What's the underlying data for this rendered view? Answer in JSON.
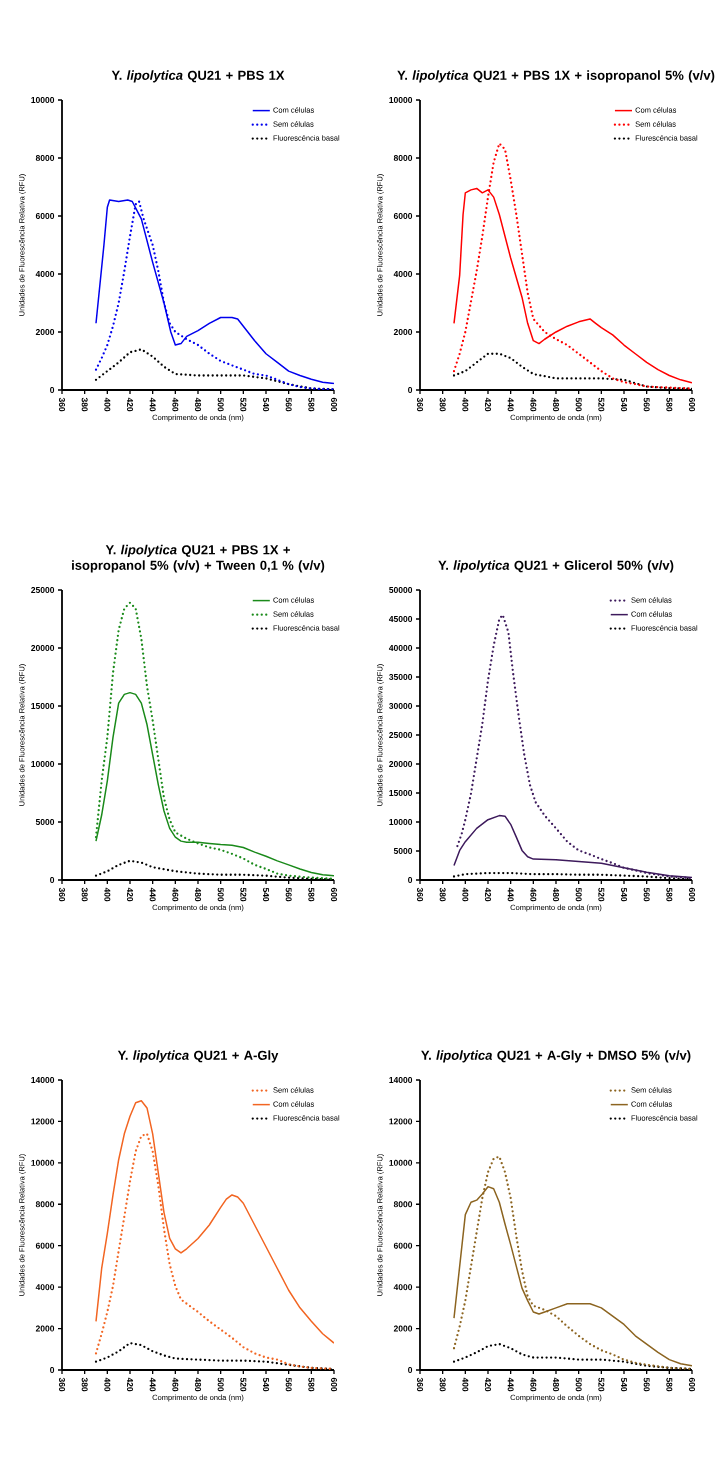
{
  "chart_data": [
    {
      "type": "line",
      "title": "Y. *lipolytica* QU21 + PBS 1X",
      "xlabel": "Comprimento de onda (nm)",
      "ylabel": "Unidades de Fluorescência Relativa (RFU)",
      "xlim": [
        360,
        600
      ],
      "xticks": [
        360,
        380,
        400,
        420,
        440,
        460,
        480,
        500,
        520,
        540,
        560,
        580,
        600
      ],
      "ylim": [
        0,
        10000
      ],
      "yticks": [
        0,
        2000,
        4000,
        6000,
        8000,
        10000
      ],
      "legend": "top right",
      "series": [
        {
          "name": "Com células",
          "color": "#0000ee",
          "line_style": "solid",
          "x": [
            390,
            397,
            400,
            402,
            410,
            418,
            422,
            430,
            440,
            450,
            456,
            460,
            465,
            470,
            480,
            490,
            500,
            510,
            515,
            520,
            530,
            540,
            550,
            560,
            570,
            580,
            590,
            600
          ],
          "values": [
            2300,
            5000,
            6300,
            6550,
            6500,
            6550,
            6500,
            5900,
            4400,
            3000,
            2000,
            1550,
            1600,
            1850,
            2050,
            2300,
            2500,
            2500,
            2450,
            2200,
            1700,
            1250,
            950,
            650,
            500,
            370,
            270,
            220
          ]
        },
        {
          "name": "Sem células",
          "color": "#0000ee",
          "line_style": "dotted",
          "x": [
            390,
            395,
            400,
            405,
            410,
            415,
            420,
            425,
            428,
            432,
            440,
            445,
            450,
            455,
            460,
            470,
            480,
            490,
            500,
            510,
            520,
            530,
            540,
            550,
            560,
            570,
            580,
            590,
            600
          ],
          "values": [
            700,
            1100,
            1550,
            2200,
            3000,
            4100,
            5300,
            6400,
            6500,
            5900,
            5000,
            4100,
            3000,
            2300,
            2000,
            1750,
            1550,
            1250,
            1000,
            850,
            700,
            550,
            500,
            350,
            200,
            100,
            50,
            30,
            20
          ]
        },
        {
          "name": "Fluorescência basal",
          "color": "#000000",
          "line_style": "dotted",
          "x": [
            390,
            400,
            410,
            420,
            430,
            440,
            450,
            460,
            480,
            500,
            520,
            540,
            560,
            580,
            600
          ],
          "values": [
            350,
            650,
            950,
            1300,
            1400,
            1150,
            800,
            550,
            500,
            500,
            500,
            400,
            200,
            50,
            20
          ]
        }
      ]
    },
    {
      "type": "line",
      "title": "Y. *lipolytica* QU21 + PBS 1X + isopropanol 5% (v/v)",
      "xlabel": "Comprimento de onda (nm)",
      "ylabel": "Unidades de Fluorescência Relativa (RFU)",
      "xlim": [
        360,
        600
      ],
      "xticks": [
        360,
        380,
        400,
        420,
        440,
        460,
        480,
        500,
        520,
        540,
        560,
        580,
        600
      ],
      "ylim": [
        0,
        10000
      ],
      "yticks": [
        0,
        2000,
        4000,
        6000,
        8000,
        10000
      ],
      "legend": "top right",
      "series": [
        {
          "name": "Com células",
          "color": "#ff0000",
          "line_style": "solid",
          "x": [
            390,
            395,
            398,
            400,
            405,
            410,
            415,
            420,
            425,
            430,
            440,
            450,
            455,
            460,
            465,
            470,
            480,
            490,
            500,
            510,
            515,
            520,
            530,
            540,
            550,
            560,
            570,
            580,
            590,
            600
          ],
          "values": [
            2300,
            3950,
            6050,
            6800,
            6900,
            6950,
            6800,
            6900,
            6650,
            6050,
            4550,
            3200,
            2300,
            1700,
            1600,
            1750,
            2000,
            2200,
            2350,
            2450,
            2300,
            2150,
            1900,
            1550,
            1250,
            950,
            700,
            500,
            350,
            250
          ]
        },
        {
          "name": "Sem células",
          "color": "#ff0000",
          "line_style": "dotted",
          "x": [
            390,
            395,
            400,
            405,
            410,
            415,
            420,
            425,
            430,
            435,
            440,
            445,
            450,
            455,
            460,
            470,
            480,
            490,
            500,
            510,
            520,
            530,
            540,
            550,
            560,
            580,
            600
          ],
          "values": [
            650,
            1250,
            2000,
            3050,
            4100,
            5300,
            6650,
            7850,
            8500,
            8300,
            7250,
            6050,
            4700,
            3350,
            2450,
            2000,
            1750,
            1550,
            1250,
            950,
            650,
            400,
            270,
            200,
            120,
            80,
            50
          ]
        },
        {
          "name": "Flurescência basal",
          "color": "#000000",
          "line_style": "dotted",
          "x": [
            390,
            400,
            410,
            420,
            430,
            440,
            450,
            460,
            480,
            500,
            520,
            540,
            560,
            580,
            600
          ],
          "values": [
            500,
            650,
            950,
            1250,
            1250,
            1100,
            800,
            550,
            400,
            400,
            400,
            350,
            120,
            60,
            40
          ]
        }
      ]
    },
    {
      "type": "line",
      "title": "Y. *lipolytica* QU21 + PBS 1X + isopropanol 5% (v/v) + Tween 0,1 % (v/v)",
      "xlabel": "Comprimento de onda (nm)",
      "ylabel": "Unidades de Fluorescência Relativa (RFU)",
      "xlim": [
        360,
        600
      ],
      "xticks": [
        360,
        380,
        400,
        420,
        440,
        460,
        480,
        500,
        520,
        540,
        560,
        580,
        600
      ],
      "ylim": [
        0,
        25000
      ],
      "yticks": [
        0,
        5000,
        10000,
        15000,
        20000,
        25000
      ],
      "legend": "top right",
      "series": [
        {
          "name": "Com células",
          "color": "#1a8a1a",
          "line_style": "solid",
          "x": [
            390,
            395,
            400,
            405,
            410,
            415,
            420,
            425,
            430,
            435,
            440,
            445,
            450,
            455,
            460,
            465,
            470,
            480,
            490,
            500,
            510,
            520,
            530,
            540,
            550,
            560,
            570,
            580,
            590,
            600
          ],
          "values": [
            3350,
            5600,
            8550,
            12300,
            15250,
            16000,
            16150,
            16000,
            15250,
            13400,
            10800,
            8200,
            5950,
            4450,
            3700,
            3350,
            3250,
            3250,
            3150,
            3050,
            3000,
            2800,
            2400,
            2050,
            1650,
            1300,
            950,
            650,
            450,
            370
          ]
        },
        {
          "name": "Sem células",
          "color": "#1a8a1a",
          "line_style": "dotted",
          "x": [
            390,
            395,
            400,
            405,
            410,
            415,
            420,
            425,
            430,
            435,
            440,
            445,
            450,
            455,
            460,
            470,
            480,
            490,
            500,
            510,
            520,
            530,
            540,
            550,
            560,
            580,
            600
          ],
          "values": [
            3700,
            8550,
            12300,
            17850,
            21550,
            23400,
            23900,
            23400,
            20800,
            16700,
            13750,
            10400,
            7050,
            5200,
            4100,
            3550,
            3150,
            2800,
            2600,
            2250,
            1850,
            1300,
            950,
            550,
            370,
            200,
            100
          ]
        },
        {
          "name": "Fluorescência basal",
          "color": "#000000",
          "line_style": "dotted",
          "x": [
            390,
            400,
            410,
            420,
            430,
            440,
            460,
            480,
            500,
            520,
            540,
            560,
            580,
            600
          ],
          "values": [
            370,
            750,
            1300,
            1650,
            1500,
            1100,
            750,
            550,
            450,
            450,
            370,
            200,
            100,
            50
          ]
        }
      ]
    },
    {
      "type": "line",
      "title": "Y. *lipolytica* QU21 + Glicerol 50% (v/v)",
      "xlabel": "Comprimento de onda (nm)",
      "ylabel": "Unidades de Fluorescência Relativa (RFU)",
      "xlim": [
        360,
        600
      ],
      "xticks": [
        360,
        380,
        400,
        420,
        440,
        460,
        480,
        500,
        520,
        540,
        560,
        580,
        600
      ],
      "ylim": [
        0,
        50000
      ],
      "yticks": [
        0,
        5000,
        10000,
        15000,
        20000,
        25000,
        30000,
        35000,
        40000,
        45000,
        50000
      ],
      "legend": "top right",
      "series": [
        {
          "name": "Sem células",
          "color": "#3d1a5c",
          "line_style": "dotted",
          "x": [
            393,
            397,
            400,
            405,
            410,
            415,
            420,
            425,
            430,
            433,
            438,
            442,
            447,
            452,
            457,
            462,
            470,
            480,
            490,
            500,
            510,
            520,
            530,
            540,
            560,
            580,
            600
          ],
          "values": [
            5850,
            8100,
            10400,
            14900,
            20900,
            26900,
            34400,
            40400,
            45000,
            45700,
            42700,
            35900,
            28400,
            21600,
            16400,
            13400,
            11100,
            8900,
            6600,
            5100,
            4400,
            3600,
            2900,
            2100,
            1200,
            600,
            300
          ]
        },
        {
          "name": "Com células",
          "color": "#3d1a5c",
          "line_style": "solid",
          "x": [
            390,
            395,
            400,
            410,
            420,
            430,
            435,
            440,
            445,
            450,
            455,
            460,
            480,
            500,
            520,
            540,
            560,
            580,
            600
          ],
          "values": [
            2500,
            5100,
            6600,
            8900,
            10400,
            11100,
            11000,
            9600,
            7400,
            5100,
            4000,
            3600,
            3500,
            3200,
            2900,
            2100,
            1350,
            750,
            450
          ]
        },
        {
          "name": "Fluorescência basal",
          "color": "#000000",
          "line_style": "dotted",
          "x": [
            390,
            400,
            420,
            440,
            460,
            480,
            500,
            520,
            540,
            560,
            580,
            600
          ],
          "values": [
            600,
            1000,
            1200,
            1200,
            1000,
            1000,
            900,
            900,
            750,
            600,
            300,
            150
          ]
        }
      ]
    },
    {
      "type": "line",
      "title": "Y. *lipolytica* QU21 + A-Gly",
      "xlabel": "Comprimento de onda (nm)",
      "ylabel": "Unidades de Fluorescência Relativa (RFU)",
      "xlim": [
        360,
        600
      ],
      "xticks": [
        360,
        380,
        400,
        420,
        440,
        460,
        480,
        500,
        520,
        540,
        560,
        580,
        600
      ],
      "ylim": [
        0,
        14000
      ],
      "yticks": [
        0,
        2000,
        4000,
        6000,
        8000,
        10000,
        12000,
        14000
      ],
      "legend": "top right",
      "series": [
        {
          "name": "Sem células",
          "color": "#f26522",
          "line_style": "dotted",
          "x": [
            390,
            395,
            400,
            405,
            410,
            415,
            420,
            425,
            430,
            435,
            440,
            445,
            450,
            455,
            460,
            465,
            470,
            480,
            490,
            500,
            510,
            520,
            530,
            540,
            550,
            560,
            570,
            580,
            600
          ],
          "values": [
            800,
            1750,
            2800,
            4050,
            5750,
            7400,
            9100,
            10550,
            11300,
            11400,
            10550,
            8900,
            6800,
            5100,
            4050,
            3400,
            3200,
            2800,
            2350,
            1950,
            1550,
            1100,
            800,
            600,
            500,
            270,
            170,
            100,
            50
          ]
        },
        {
          "name": "Com células",
          "color": "#f26522",
          "line_style": "solid",
          "x": [
            390,
            395,
            400,
            405,
            410,
            415,
            420,
            425,
            430,
            435,
            440,
            445,
            450,
            455,
            460,
            465,
            470,
            480,
            490,
            500,
            505,
            510,
            515,
            520,
            530,
            540,
            550,
            560,
            570,
            580,
            590,
            600
          ],
          "values": [
            2350,
            4900,
            6600,
            8450,
            10150,
            11400,
            12250,
            12900,
            13000,
            12650,
            11400,
            9500,
            7600,
            6350,
            5850,
            5650,
            5850,
            6350,
            7000,
            7850,
            8250,
            8450,
            8350,
            8050,
            7000,
            5950,
            4900,
            3850,
            3000,
            2350,
            1750,
            1300
          ]
        },
        {
          "name": "Fluorescência basal",
          "color": "#000000",
          "line_style": "dotted",
          "x": [
            390,
            400,
            410,
            420,
            430,
            440,
            450,
            460,
            480,
            500,
            520,
            540,
            560,
            580,
            600
          ],
          "values": [
            400,
            600,
            900,
            1300,
            1200,
            900,
            700,
            550,
            500,
            450,
            450,
            400,
            250,
            100,
            50
          ]
        }
      ]
    },
    {
      "type": "line",
      "title": "Y. *lipolytica* QU21 + A-Gly + DMSO 5% (v/v)",
      "xlabel": "Comprimento de onda (nm)",
      "ylabel": "Unidades de Fluorescência Relativa (RFU)",
      "xlim": [
        360,
        600
      ],
      "xticks": [
        360,
        380,
        400,
        420,
        440,
        460,
        480,
        500,
        520,
        540,
        560,
        580,
        600
      ],
      "ylim": [
        0,
        14000
      ],
      "yticks": [
        0,
        2000,
        4000,
        6000,
        8000,
        10000,
        12000,
        14000
      ],
      "legend": "top right",
      "series": [
        {
          "name": "Sem células",
          "color": "#8c6420",
          "line_style": "dotted",
          "x": [
            390,
            395,
            400,
            405,
            410,
            415,
            420,
            425,
            430,
            435,
            440,
            445,
            450,
            455,
            460,
            470,
            480,
            490,
            500,
            510,
            520,
            530,
            540,
            550,
            560,
            580,
            600
          ],
          "values": [
            1050,
            2100,
            3350,
            5000,
            6650,
            8300,
            9550,
            10200,
            10300,
            9550,
            8300,
            6450,
            4800,
            3550,
            3100,
            2900,
            2600,
            2100,
            1650,
            1250,
            950,
            750,
            500,
            350,
            250,
            100,
            50
          ]
        },
        {
          "name": "Com células",
          "color": "#8c6420",
          "line_style": "solid",
          "x": [
            390,
            395,
            400,
            405,
            410,
            415,
            420,
            425,
            430,
            435,
            440,
            445,
            450,
            455,
            460,
            465,
            470,
            480,
            490,
            500,
            510,
            520,
            530,
            540,
            550,
            560,
            570,
            580,
            590,
            600
          ],
          "values": [
            2500,
            5000,
            7500,
            8100,
            8200,
            8500,
            8850,
            8750,
            8100,
            7050,
            6050,
            5000,
            3950,
            3350,
            2800,
            2700,
            2800,
            3000,
            3200,
            3200,
            3200,
            3000,
            2600,
            2200,
            1650,
            1250,
            850,
            500,
            300,
            200
          ]
        },
        {
          "name": "Fluorescência basal",
          "color": "#000000",
          "line_style": "dotted",
          "x": [
            390,
            400,
            410,
            420,
            430,
            440,
            450,
            460,
            480,
            500,
            520,
            540,
            560,
            580,
            600
          ],
          "values": [
            400,
            600,
            850,
            1150,
            1250,
            1050,
            750,
            600,
            600,
            500,
            500,
            400,
            200,
            100,
            50
          ]
        }
      ]
    }
  ]
}
